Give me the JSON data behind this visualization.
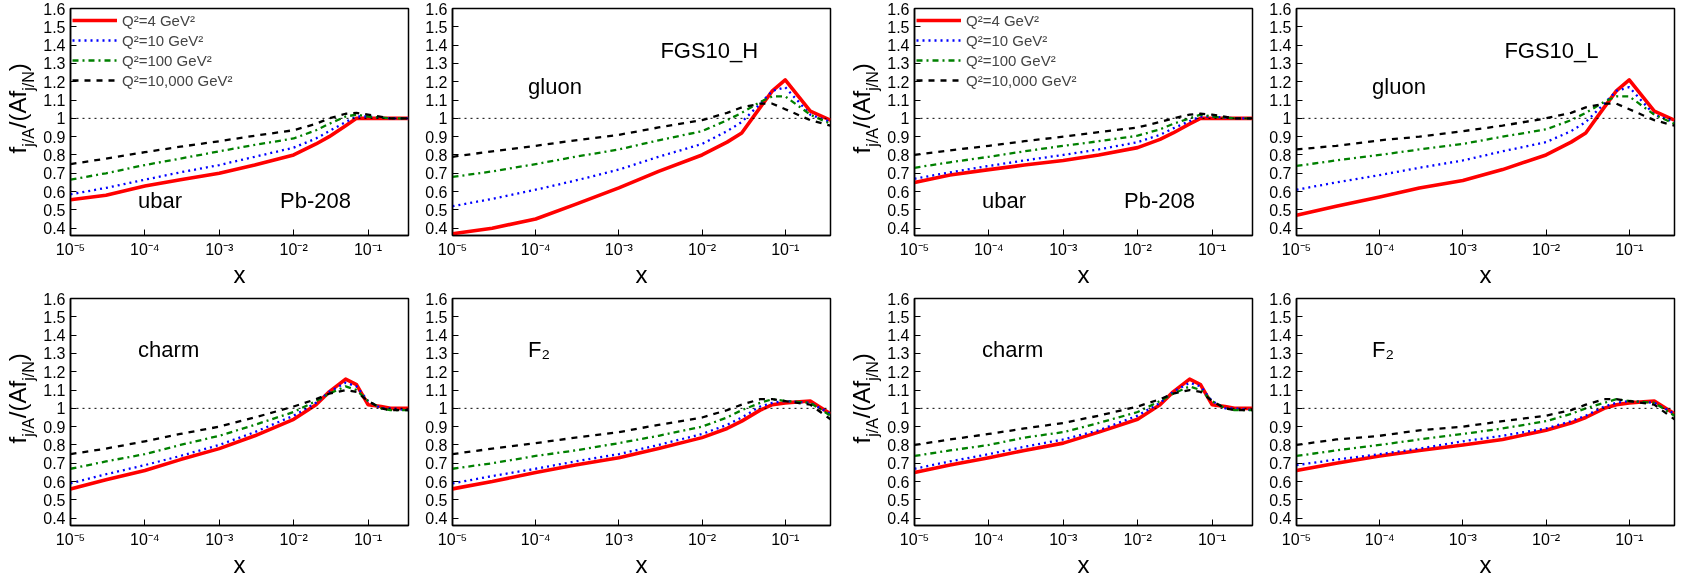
{
  "chart_data": [
    {
      "type": "line",
      "ylabel": "f$_{j/A}$/(Af$_{j/N}$)",
      "xlabel": "x",
      "log": "x",
      "legend": "top left",
      "annotations": [
        "ubar",
        "Pb-208"
      ],
      "x": [
        1e-05,
        3e-05,
        0.0001,
        0.0003,
        0.001,
        0.003,
        0.01,
        0.02,
        0.03,
        0.05,
        0.07,
        0.1,
        0.2,
        0.35
      ],
      "xlim": [
        1e-05,
        0.35
      ],
      "ylim": [
        0.36,
        1.6
      ],
      "xticks": [
        {
          "value": 1e-05,
          "label": "10⁻⁵"
        },
        {
          "value": 0.0001,
          "label": "10⁻⁴"
        },
        {
          "value": 0.001,
          "label": "10⁻³"
        },
        {
          "value": 0.01,
          "label": "10⁻²"
        },
        {
          "value": 0.1,
          "label": "10⁻¹"
        }
      ],
      "yticks": [
        0.4,
        0.5,
        0.6,
        0.7,
        0.8,
        0.9,
        1,
        1.1,
        1.2,
        1.3,
        1.4,
        1.5,
        1.6
      ],
      "ref_lines": [
        {
          "axis": "y",
          "value": 1,
          "color": "#000000",
          "line_style": "dotted"
        }
      ],
      "series": [
        {
          "name": "Q²=4 GeV²",
          "color": "#ff0000",
          "line_style": "solid",
          "values": [
            0.555,
            0.58,
            0.63,
            0.665,
            0.7,
            0.745,
            0.8,
            0.86,
            0.9,
            0.96,
            1.0,
            1.0,
            1.0,
            1.0
          ]
        },
        {
          "name": "Q²=10 GeV²",
          "color": "#0000ff",
          "line_style": "dotted",
          "values": [
            0.585,
            0.62,
            0.665,
            0.705,
            0.745,
            0.79,
            0.84,
            0.89,
            0.93,
            0.98,
            1.01,
            1.01,
            1.0,
            1.0
          ]
        },
        {
          "name": "Q²=100 GeV²",
          "color": "#008000",
          "line_style": "dashdot",
          "values": [
            0.665,
            0.7,
            0.745,
            0.78,
            0.82,
            0.855,
            0.89,
            0.935,
            0.97,
            1.01,
            1.02,
            1.01,
            1.0,
            1.0
          ]
        },
        {
          "name": "Q²=10,000 GeV²",
          "color": "#000000",
          "line_style": "dashed",
          "values": [
            0.75,
            0.78,
            0.815,
            0.845,
            0.875,
            0.905,
            0.935,
            0.97,
            1.0,
            1.025,
            1.03,
            1.02,
            1.0,
            1.0
          ]
        }
      ]
    },
    {
      "type": "line",
      "xlabel": "x",
      "log": "x",
      "annotations": [
        "gluon",
        "FGS10_H"
      ],
      "x": [
        1e-05,
        3e-05,
        0.0001,
        0.0003,
        0.001,
        0.003,
        0.01,
        0.02,
        0.03,
        0.05,
        0.07,
        0.1,
        0.2,
        0.35
      ],
      "xlim": [
        1e-05,
        0.35
      ],
      "ylim": [
        0.36,
        1.6
      ],
      "xticks": [
        {
          "value": 1e-05,
          "label": "10⁻⁵"
        },
        {
          "value": 0.0001,
          "label": "10⁻⁴"
        },
        {
          "value": 0.001,
          "label": "10⁻³"
        },
        {
          "value": 0.01,
          "label": "10⁻²"
        },
        {
          "value": 0.1,
          "label": "10⁻¹"
        }
      ],
      "yticks": [
        0.4,
        0.5,
        0.6,
        0.7,
        0.8,
        0.9,
        1,
        1.1,
        1.2,
        1.3,
        1.4,
        1.5,
        1.6
      ],
      "ref_lines": [
        {
          "axis": "y",
          "value": 1,
          "color": "#000000",
          "line_style": "dotted"
        }
      ],
      "series": [
        {
          "color": "#ff0000",
          "line_style": "solid",
          "values": [
            0.37,
            0.4,
            0.45,
            0.53,
            0.62,
            0.71,
            0.8,
            0.87,
            0.92,
            1.06,
            1.15,
            1.21,
            1.04,
            0.99
          ]
        },
        {
          "color": "#0000ff",
          "line_style": "dotted",
          "values": [
            0.52,
            0.56,
            0.61,
            0.66,
            0.72,
            0.79,
            0.86,
            0.93,
            0.98,
            1.08,
            1.15,
            1.17,
            1.02,
            0.98
          ]
        },
        {
          "color": "#008000",
          "line_style": "dashdot",
          "values": [
            0.68,
            0.71,
            0.75,
            0.79,
            0.83,
            0.88,
            0.93,
            0.99,
            1.03,
            1.09,
            1.12,
            1.12,
            1.02,
            0.97
          ]
        },
        {
          "color": "#000000",
          "line_style": "dashed",
          "values": [
            0.79,
            0.82,
            0.85,
            0.88,
            0.91,
            0.95,
            0.99,
            1.03,
            1.06,
            1.08,
            1.08,
            1.05,
            0.99,
            0.96
          ]
        }
      ]
    },
    {
      "type": "line",
      "ylabel": "f$_{j/A}$/(Af$_{j/N}$)",
      "xlabel": "x",
      "log": "x",
      "legend": "top left",
      "annotations": [
        "ubar",
        "Pb-208"
      ],
      "x": [
        1e-05,
        3e-05,
        0.0001,
        0.0003,
        0.001,
        0.003,
        0.01,
        0.02,
        0.03,
        0.05,
        0.07,
        0.1,
        0.2,
        0.35
      ],
      "xlim": [
        1e-05,
        0.35
      ],
      "ylim": [
        0.36,
        1.6
      ],
      "xticks": [
        {
          "value": 1e-05,
          "label": "10⁻⁵"
        },
        {
          "value": 0.0001,
          "label": "10⁻⁴"
        },
        {
          "value": 0.001,
          "label": "10⁻³"
        },
        {
          "value": 0.01,
          "label": "10⁻²"
        },
        {
          "value": 0.1,
          "label": "10⁻¹"
        }
      ],
      "yticks": [
        0.4,
        0.5,
        0.6,
        0.7,
        0.8,
        0.9,
        1,
        1.1,
        1.2,
        1.3,
        1.4,
        1.5,
        1.6
      ],
      "ref_lines": [
        {
          "axis": "y",
          "value": 1,
          "color": "#000000",
          "line_style": "dotted"
        }
      ],
      "series": [
        {
          "name": "Q²=4 GeV²",
          "color": "#ff0000",
          "line_style": "solid",
          "values": [
            0.65,
            0.69,
            0.72,
            0.745,
            0.77,
            0.8,
            0.84,
            0.885,
            0.92,
            0.97,
            1.0,
            1.0,
            1.0,
            1.0
          ]
        },
        {
          "name": "Q²=10 GeV²",
          "color": "#0000ff",
          "line_style": "dotted",
          "values": [
            0.67,
            0.705,
            0.74,
            0.77,
            0.8,
            0.83,
            0.87,
            0.91,
            0.945,
            0.985,
            1.01,
            1.01,
            1.0,
            1.0
          ]
        },
        {
          "name": "Q²=100 GeV²",
          "color": "#008000",
          "line_style": "dashdot",
          "values": [
            0.73,
            0.76,
            0.79,
            0.82,
            0.85,
            0.875,
            0.905,
            0.94,
            0.97,
            1.0,
            1.02,
            1.01,
            1.0,
            1.0
          ]
        },
        {
          "name": "Q²=10,000 GeV²",
          "color": "#000000",
          "line_style": "dashed",
          "values": [
            0.8,
            0.825,
            0.85,
            0.875,
            0.9,
            0.925,
            0.95,
            0.98,
            1.0,
            1.02,
            1.025,
            1.02,
            1.0,
            1.0
          ]
        }
      ]
    },
    {
      "type": "line",
      "xlabel": "x",
      "log": "x",
      "annotations": [
        "gluon",
        "FGS10_L"
      ],
      "x": [
        1e-05,
        3e-05,
        0.0001,
        0.0003,
        0.001,
        0.003,
        0.01,
        0.02,
        0.03,
        0.05,
        0.07,
        0.1,
        0.2,
        0.35
      ],
      "xlim": [
        1e-05,
        0.35
      ],
      "ylim": [
        0.36,
        1.6
      ],
      "xticks": [
        {
          "value": 1e-05,
          "label": "10⁻⁵"
        },
        {
          "value": 0.0001,
          "label": "10⁻⁴"
        },
        {
          "value": 0.001,
          "label": "10⁻³"
        },
        {
          "value": 0.01,
          "label": "10⁻²"
        },
        {
          "value": 0.1,
          "label": "10⁻¹"
        }
      ],
      "yticks": [
        0.4,
        0.5,
        0.6,
        0.7,
        0.8,
        0.9,
        1,
        1.1,
        1.2,
        1.3,
        1.4,
        1.5,
        1.6
      ],
      "ref_lines": [
        {
          "axis": "y",
          "value": 1,
          "color": "#000000",
          "line_style": "dotted"
        }
      ],
      "series": [
        {
          "color": "#ff0000",
          "line_style": "solid",
          "values": [
            0.47,
            0.52,
            0.57,
            0.62,
            0.66,
            0.72,
            0.8,
            0.87,
            0.92,
            1.06,
            1.15,
            1.21,
            1.04,
            0.99
          ]
        },
        {
          "color": "#0000ff",
          "line_style": "dotted",
          "values": [
            0.61,
            0.65,
            0.69,
            0.73,
            0.77,
            0.82,
            0.87,
            0.93,
            0.98,
            1.08,
            1.15,
            1.17,
            1.02,
            0.98
          ]
        },
        {
          "color": "#008000",
          "line_style": "dashdot",
          "values": [
            0.74,
            0.77,
            0.8,
            0.83,
            0.86,
            0.9,
            0.94,
            0.99,
            1.03,
            1.09,
            1.12,
            1.12,
            1.02,
            0.97
          ]
        },
        {
          "color": "#000000",
          "line_style": "dashed",
          "values": [
            0.83,
            0.85,
            0.88,
            0.9,
            0.93,
            0.96,
            1.0,
            1.03,
            1.06,
            1.08,
            1.08,
            1.05,
            0.99,
            0.96
          ]
        }
      ]
    },
    {
      "type": "line",
      "ylabel": "f$_{j/A}$/(Af$_{j/N}$)",
      "xlabel": "x",
      "log": "x",
      "annotations": [
        "charm"
      ],
      "x": [
        1e-05,
        3e-05,
        0.0001,
        0.0003,
        0.001,
        0.003,
        0.01,
        0.02,
        0.03,
        0.05,
        0.07,
        0.1,
        0.15,
        0.2,
        0.35
      ],
      "xlim": [
        1e-05,
        0.35
      ],
      "ylim": [
        0.36,
        1.6
      ],
      "xticks": [
        {
          "value": 1e-05,
          "label": "10⁻⁵"
        },
        {
          "value": 0.0001,
          "label": "10⁻⁴"
        },
        {
          "value": 0.001,
          "label": "10⁻³"
        },
        {
          "value": 0.01,
          "label": "10⁻²"
        },
        {
          "value": 0.1,
          "label": "10⁻¹"
        }
      ],
      "yticks": [
        0.4,
        0.5,
        0.6,
        0.7,
        0.8,
        0.9,
        1,
        1.1,
        1.2,
        1.3,
        1.4,
        1.5,
        1.6
      ],
      "ref_lines": [
        {
          "axis": "y",
          "value": 1,
          "color": "#000000",
          "line_style": "dotted"
        }
      ],
      "series": [
        {
          "color": "#ff0000",
          "line_style": "solid",
          "values": [
            0.56,
            0.61,
            0.66,
            0.72,
            0.78,
            0.85,
            0.94,
            1.02,
            1.09,
            1.16,
            1.13,
            1.02,
            1.01,
            1.0,
            1.0
          ]
        },
        {
          "color": "#0000ff",
          "line_style": "dotted",
          "values": [
            0.59,
            0.64,
            0.69,
            0.74,
            0.8,
            0.87,
            0.96,
            1.03,
            1.09,
            1.14,
            1.12,
            1.04,
            1.0,
            1.0,
            0.99
          ]
        },
        {
          "color": "#008000",
          "line_style": "dashdot",
          "values": [
            0.67,
            0.71,
            0.75,
            0.8,
            0.85,
            0.91,
            0.98,
            1.04,
            1.08,
            1.12,
            1.1,
            1.04,
            1.0,
            0.99,
            0.99
          ]
        },
        {
          "color": "#000000",
          "line_style": "dashed",
          "values": [
            0.75,
            0.78,
            0.82,
            0.86,
            0.9,
            0.95,
            1.01,
            1.05,
            1.08,
            1.1,
            1.09,
            1.04,
            1.0,
            0.99,
            0.99
          ]
        }
      ]
    },
    {
      "type": "line",
      "xlabel": "x",
      "log": "x",
      "annotations": [
        "F₂"
      ],
      "x": [
        1e-05,
        3e-05,
        0.0001,
        0.0003,
        0.001,
        0.003,
        0.01,
        0.02,
        0.03,
        0.05,
        0.07,
        0.1,
        0.2,
        0.35
      ],
      "xlim": [
        1e-05,
        0.35
      ],
      "ylim": [
        0.36,
        1.6
      ],
      "xticks": [
        {
          "value": 1e-05,
          "label": "10⁻⁵"
        },
        {
          "value": 0.0001,
          "label": "10⁻⁴"
        },
        {
          "value": 0.001,
          "label": "10⁻³"
        },
        {
          "value": 0.01,
          "label": "10⁻²"
        },
        {
          "value": 0.1,
          "label": "10⁻¹"
        }
      ],
      "yticks": [
        0.4,
        0.5,
        0.6,
        0.7,
        0.8,
        0.9,
        1,
        1.1,
        1.2,
        1.3,
        1.4,
        1.5,
        1.6
      ],
      "ref_lines": [
        {
          "axis": "y",
          "value": 1,
          "color": "#000000",
          "line_style": "dotted"
        }
      ],
      "series": [
        {
          "color": "#ff0000",
          "line_style": "solid",
          "values": [
            0.56,
            0.6,
            0.65,
            0.69,
            0.73,
            0.78,
            0.84,
            0.89,
            0.93,
            0.99,
            1.02,
            1.03,
            1.04,
            0.97
          ]
        },
        {
          "color": "#0000ff",
          "line_style": "dotted",
          "values": [
            0.59,
            0.63,
            0.67,
            0.71,
            0.75,
            0.8,
            0.86,
            0.91,
            0.95,
            1.01,
            1.03,
            1.04,
            1.03,
            0.97
          ]
        },
        {
          "color": "#008000",
          "line_style": "dashdot",
          "values": [
            0.67,
            0.7,
            0.74,
            0.77,
            0.81,
            0.85,
            0.9,
            0.95,
            0.99,
            1.03,
            1.05,
            1.04,
            1.03,
            0.96
          ]
        },
        {
          "color": "#000000",
          "line_style": "dashed",
          "values": [
            0.75,
            0.78,
            0.81,
            0.84,
            0.87,
            0.91,
            0.95,
            0.99,
            1.02,
            1.05,
            1.05,
            1.04,
            1.02,
            0.94
          ]
        }
      ]
    },
    {
      "type": "line",
      "ylabel": "f$_{j/A}$/(Af$_{j/N}$)",
      "xlabel": "x",
      "log": "x",
      "annotations": [
        "charm"
      ],
      "x": [
        1e-05,
        3e-05,
        0.0001,
        0.0003,
        0.001,
        0.003,
        0.01,
        0.02,
        0.03,
        0.05,
        0.07,
        0.1,
        0.15,
        0.2,
        0.35
      ],
      "xlim": [
        1e-05,
        0.35
      ],
      "ylim": [
        0.36,
        1.6
      ],
      "xticks": [
        {
          "value": 1e-05,
          "label": "10⁻⁵"
        },
        {
          "value": 0.0001,
          "label": "10⁻⁴"
        },
        {
          "value": 0.001,
          "label": "10⁻³"
        },
        {
          "value": 0.01,
          "label": "10⁻²"
        },
        {
          "value": 0.1,
          "label": "10⁻¹"
        }
      ],
      "yticks": [
        0.4,
        0.5,
        0.6,
        0.7,
        0.8,
        0.9,
        1,
        1.1,
        1.2,
        1.3,
        1.4,
        1.5,
        1.6
      ],
      "ref_lines": [
        {
          "axis": "y",
          "value": 1,
          "color": "#000000",
          "line_style": "dotted"
        }
      ],
      "series": [
        {
          "color": "#ff0000",
          "line_style": "solid",
          "values": [
            0.65,
            0.69,
            0.73,
            0.77,
            0.81,
            0.87,
            0.94,
            1.02,
            1.09,
            1.16,
            1.13,
            1.02,
            1.01,
            1.0,
            1.0
          ]
        },
        {
          "color": "#0000ff",
          "line_style": "dotted",
          "values": [
            0.67,
            0.71,
            0.75,
            0.79,
            0.83,
            0.88,
            0.96,
            1.03,
            1.09,
            1.14,
            1.12,
            1.04,
            1.0,
            1.0,
            0.99
          ]
        },
        {
          "color": "#008000",
          "line_style": "dashdot",
          "values": [
            0.74,
            0.77,
            0.8,
            0.84,
            0.87,
            0.92,
            0.98,
            1.04,
            1.08,
            1.12,
            1.1,
            1.04,
            1.0,
            0.99,
            0.99
          ]
        },
        {
          "color": "#000000",
          "line_style": "dashed",
          "values": [
            0.8,
            0.83,
            0.86,
            0.89,
            0.92,
            0.96,
            1.01,
            1.05,
            1.08,
            1.1,
            1.09,
            1.04,
            1.0,
            0.99,
            0.99
          ]
        }
      ]
    },
    {
      "type": "line",
      "xlabel": "x",
      "log": "x",
      "annotations": [
        "F₂"
      ],
      "x": [
        1e-05,
        3e-05,
        0.0001,
        0.0003,
        0.001,
        0.003,
        0.01,
        0.02,
        0.03,
        0.05,
        0.07,
        0.1,
        0.2,
        0.35
      ],
      "xlim": [
        1e-05,
        0.35
      ],
      "ylim": [
        0.36,
        1.6
      ],
      "xticks": [
        {
          "value": 1e-05,
          "label": "10⁻⁵"
        },
        {
          "value": 0.0001,
          "label": "10⁻⁴"
        },
        {
          "value": 0.001,
          "label": "10⁻³"
        },
        {
          "value": 0.01,
          "label": "10⁻²"
        },
        {
          "value": 0.1,
          "label": "10⁻¹"
        }
      ],
      "yticks": [
        0.4,
        0.5,
        0.6,
        0.7,
        0.8,
        0.9,
        1,
        1.1,
        1.2,
        1.3,
        1.4,
        1.5,
        1.6
      ],
      "ref_lines": [
        {
          "axis": "y",
          "value": 1,
          "color": "#000000",
          "line_style": "dotted"
        }
      ],
      "series": [
        {
          "color": "#ff0000",
          "line_style": "solid",
          "values": [
            0.66,
            0.7,
            0.74,
            0.77,
            0.8,
            0.83,
            0.88,
            0.92,
            0.95,
            1.0,
            1.02,
            1.03,
            1.04,
            0.97
          ]
        },
        {
          "color": "#0000ff",
          "line_style": "dotted",
          "values": [
            0.69,
            0.72,
            0.75,
            0.78,
            0.82,
            0.85,
            0.89,
            0.93,
            0.96,
            1.01,
            1.03,
            1.04,
            1.03,
            0.97
          ]
        },
        {
          "color": "#008000",
          "line_style": "dashdot",
          "values": [
            0.74,
            0.77,
            0.8,
            0.83,
            0.86,
            0.89,
            0.93,
            0.97,
            1.0,
            1.03,
            1.05,
            1.04,
            1.03,
            0.96
          ]
        },
        {
          "color": "#000000",
          "line_style": "dashed",
          "values": [
            0.8,
            0.83,
            0.85,
            0.88,
            0.9,
            0.93,
            0.96,
            0.99,
            1.02,
            1.05,
            1.05,
            1.04,
            1.02,
            0.94
          ]
        }
      ]
    }
  ]
}
